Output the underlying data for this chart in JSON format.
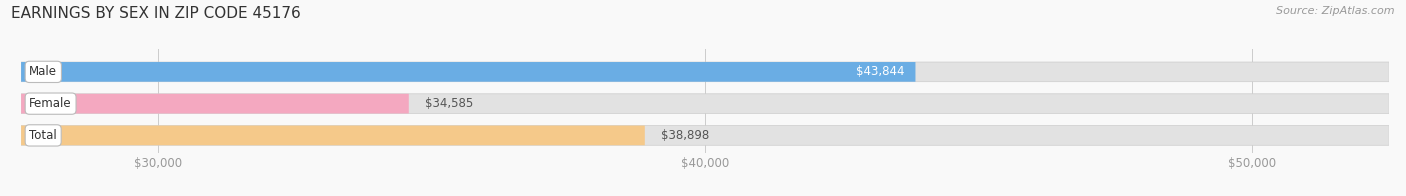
{
  "title": "EARNINGS BY SEX IN ZIP CODE 45176",
  "source": "Source: ZipAtlas.com",
  "categories": [
    "Male",
    "Female",
    "Total"
  ],
  "values": [
    43844,
    34585,
    38898
  ],
  "bar_colors": [
    "#6aade4",
    "#f4a8c0",
    "#f5c98a"
  ],
  "bar_bg_color": "#e2e2e2",
  "value_labels": [
    "$43,844",
    "$34,585",
    "$38,898"
  ],
  "tick_labels": [
    "$30,000",
    "$40,000",
    "$50,000"
  ],
  "tick_values": [
    30000,
    40000,
    50000
  ],
  "xmin": 27500,
  "xmax": 52500,
  "bar_height": 0.62,
  "background_color": "#f9f9f9",
  "title_fontsize": 11,
  "label_fontsize": 8.5,
  "value_fontsize": 8.5,
  "tick_fontsize": 8.5,
  "source_fontsize": 8
}
